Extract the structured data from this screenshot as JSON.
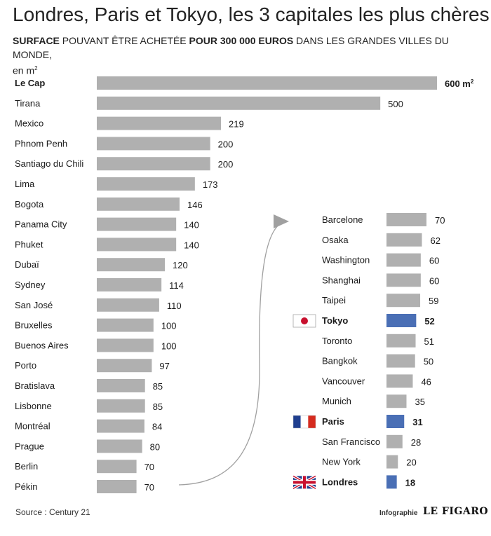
{
  "header": {
    "title": "Londres, Paris et Tokyo, les 3 capitales les plus chères",
    "subtitle_parts": [
      "SURFACE",
      " POUVANT ÊTRE ACHETÉE ",
      "POUR 300 000 EUROS",
      " DANS LES GRANDES VILLES DU MONDE,"
    ],
    "subtitle_line2": "en m",
    "subtitle_sup": "2"
  },
  "footer": {
    "source": "Source : Century 21",
    "credit": "Infographie",
    "brand": "LE FIGARO"
  },
  "colors": {
    "bar_default": "#b0b0b0",
    "bar_highlight": "#4a6fb5",
    "arrow": "#a0a0a0"
  },
  "chart_data": [
    {
      "type": "bar",
      "orientation": "horizontal",
      "unit": "m²",
      "first_value_label": "600 m",
      "first_value_sup": "2",
      "categories": [
        "Le Cap",
        "Tirana",
        "Mexico",
        "Phnom Penh",
        "Santiago du Chili",
        "Lima",
        "Bogota",
        "Panama City",
        "Phuket",
        "Dubaï",
        "Sydney",
        "San José",
        "Bruxelles",
        "Buenos Aires",
        "Porto",
        "Bratislava",
        "Lisbonne",
        "Montréal",
        "Prague",
        "Berlin",
        "Pékin"
      ],
      "values": [
        600,
        500,
        219,
        200,
        200,
        173,
        146,
        140,
        140,
        120,
        114,
        110,
        100,
        100,
        97,
        85,
        85,
        84,
        80,
        70,
        70
      ],
      "bold": [
        "Le Cap"
      ]
    },
    {
      "type": "bar",
      "orientation": "horizontal",
      "unit": "m²",
      "categories": [
        "Barcelone",
        "Osaka",
        "Washington",
        "Shanghai",
        "Taipei",
        "Tokyo",
        "Toronto",
        "Bangkok",
        "Vancouver",
        "Munich",
        "Paris",
        "San Francisco",
        "New York",
        "Londres"
      ],
      "values": [
        70,
        62,
        60,
        60,
        59,
        52,
        51,
        50,
        46,
        35,
        31,
        28,
        20,
        18
      ],
      "highlighted": [
        "Tokyo",
        "Paris",
        "Londres"
      ],
      "flags": {
        "Tokyo": "japan-flag-icon",
        "Paris": "france-flag-icon",
        "Londres": "uk-flag-icon"
      }
    }
  ]
}
